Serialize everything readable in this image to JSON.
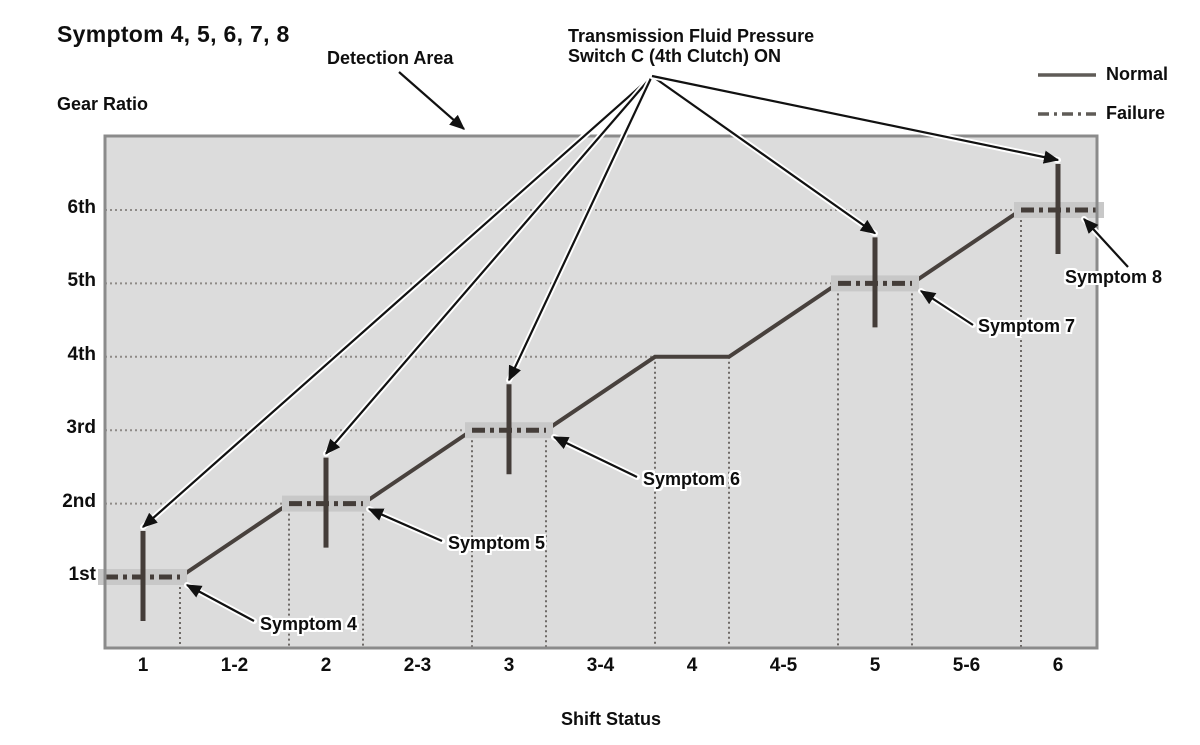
{
  "title": "Symptom 4, 5, 6, 7, 8",
  "annotations": {
    "detection_area": "Detection Area",
    "switch_line1": "Transmission Fluid Pressure",
    "switch_line2": "Switch C (4th Clutch) ON"
  },
  "legend": [
    {
      "label": "Normal",
      "style": "solid"
    },
    {
      "label": "Failure",
      "style": "dash-dot"
    }
  ],
  "colors": {
    "plot_bg": "#dcdcdc",
    "band": "#c8c8c8",
    "line": "#48413d",
    "failure_line": "#443d39",
    "grid_h": "#8e8a87",
    "grid_v": "#6e6a67",
    "border": "#8b8b8b",
    "legend_line": "#5f5b57",
    "arrow": "#111111",
    "text": "#0e0e0e",
    "halo": "#ffffff"
  },
  "chart_data": {
    "type": "line",
    "subtype": "step-shift-diagram",
    "title": "Symptom 4, 5, 6, 7, 8",
    "xlabel": "Shift Status",
    "ylabel": "Gear Ratio",
    "x_ticks": [
      "1",
      "1-2",
      "2",
      "2-3",
      "3",
      "3-4",
      "4",
      "4-5",
      "5",
      "5-6",
      "6"
    ],
    "y_ticks": [
      "1st",
      "2nd",
      "3rd",
      "4th",
      "5th",
      "6th"
    ],
    "grid": "dotted horizontal leader lines from each gear label to its plateau; dotted vertical lines dropped from every plateau edge to the x-axis",
    "legend_position": "top-right",
    "normal_series": {
      "name": "Normal",
      "style": "solid",
      "description": "Gear-ratio step line: flat plateau at each in-gear shift status (1,2,3,4,5,6) with diagonal ramps across the 1-2, 2-3, 3-4, 4-5, 5-6 transition statuses",
      "plateaus": [
        {
          "gear": 1,
          "shift": "1"
        },
        {
          "gear": 2,
          "shift": "2"
        },
        {
          "gear": 3,
          "shift": "3"
        },
        {
          "gear": 4,
          "shift": "4"
        },
        {
          "gear": 5,
          "shift": "5"
        },
        {
          "gear": 6,
          "shift": "6"
        }
      ]
    },
    "failure_series": {
      "name": "Failure",
      "style": "dash-dot",
      "description": "Dash-dot overlay with shaded highlight band on the plateaus where the failure is detected (no overlay in 4th gear)",
      "gears": [
        1,
        2,
        3,
        5,
        6
      ]
    },
    "detection_markers": {
      "description": "Vertical detection-window tick through each failure plateau; all five are pointed at by the fan of arrows from the pressure-switch annotation",
      "gears": [
        1,
        2,
        3,
        5,
        6
      ]
    },
    "symptom_callouts": [
      {
        "label": "Symptom 4",
        "gear": 1,
        "shift": "1"
      },
      {
        "label": "Symptom 5",
        "gear": 2,
        "shift": "2"
      },
      {
        "label": "Symptom 6",
        "gear": 3,
        "shift": "3"
      },
      {
        "label": "Symptom 7",
        "gear": 5,
        "shift": "5"
      },
      {
        "label": "Symptom 8",
        "gear": 6,
        "shift": "6"
      }
    ]
  }
}
